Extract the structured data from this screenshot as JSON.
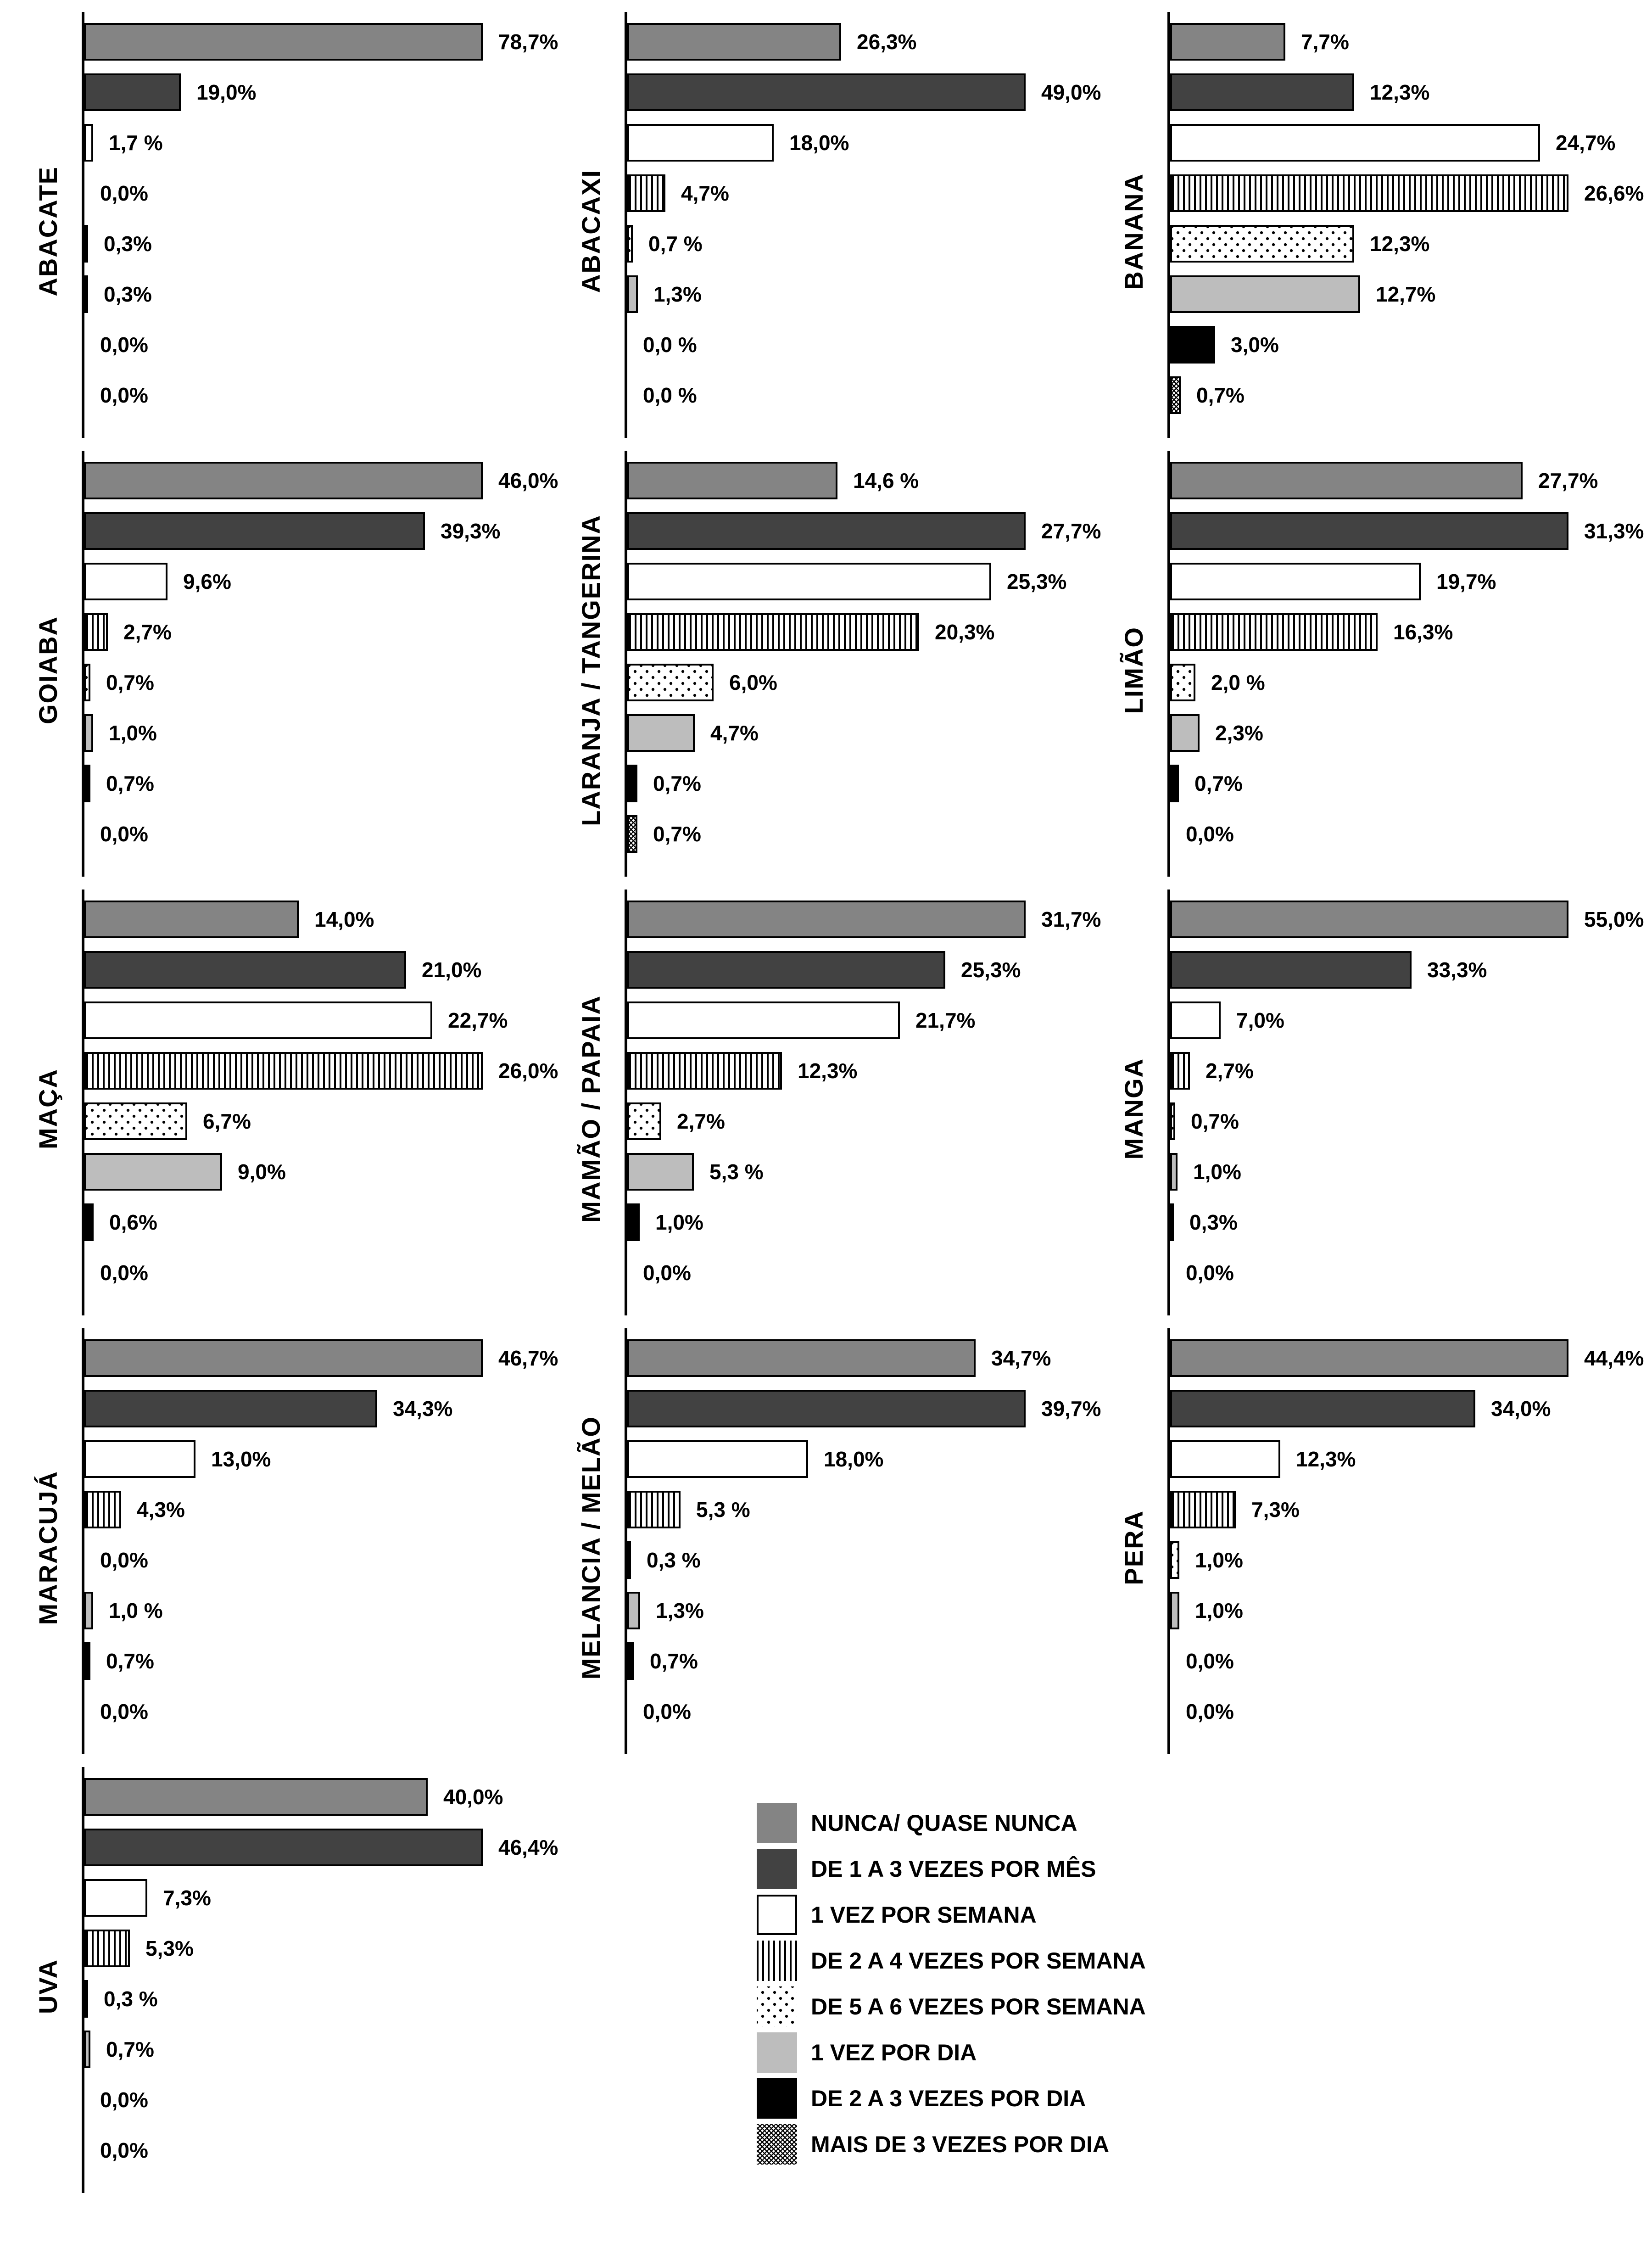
{
  "figure": {
    "description": "Frequency of fruit consumption, horizontal bar charts per fruit",
    "background": "#ffffff",
    "text_color": "#000000"
  },
  "palette": {
    "medium_gray": "#848484",
    "dark_gray": "#424242",
    "white": "#ffffff",
    "light_gray": "#bdbdbd",
    "black": "#000000"
  },
  "categories": [
    "NUNCA/ QUASE NUNCA",
    "DE 1 A 3 VEZES POR MÊS",
    "1 VEZ POR SEMANA",
    "DE 2 A 4 VEZES POR SEMANA",
    "DE 5 A 6 VEZES POR SEMANA",
    "1 VEZ POR DIA",
    "DE 2 A 3 VEZES POR DIA",
    "MAIS DE 3 VEZES POR DIA"
  ],
  "patterns": [
    "pat-gray",
    "pat-darkgray",
    "pat-white",
    "pat-vstripes",
    "pat-dots",
    "pat-lightgray",
    "pat-black",
    "pat-crosshatch"
  ],
  "legend": {
    "position": "bottom-right",
    "items": [
      {
        "label": "NUNCA/ QUASE NUNCA",
        "pattern": "pat-gray"
      },
      {
        "label": "DE 1 A 3 VEZES POR MÊS",
        "pattern": "pat-darkgray"
      },
      {
        "label": "1 VEZ POR SEMANA",
        "pattern": "pat-white"
      },
      {
        "label": "DE 2 A 4 VEZES POR SEMANA",
        "pattern": "pat-vstripes"
      },
      {
        "label": "DE 5 A 6 VEZES POR SEMANA",
        "pattern": "pat-dots"
      },
      {
        "label": "1 VEZ POR DIA",
        "pattern": "pat-lightgray"
      },
      {
        "label": "DE 2 A 3 VEZES POR DIA",
        "pattern": "pat-black"
      },
      {
        "label": "MAIS DE 3 VEZES POR DIA",
        "pattern": "pat-crosshatch"
      }
    ]
  },
  "chart_data": [
    {
      "type": "bar",
      "orientation": "horizontal",
      "fruit": "ABACATE",
      "categories_ref": "categories",
      "values": [
        78.7,
        19.0,
        1.7,
        0.0,
        0.3,
        0.3,
        0.0,
        0.0
      ],
      "value_labels": [
        "78,7%",
        "19,0%",
        "1,7 %",
        "0,0%",
        "0,3%",
        "0,3%",
        "0,0%",
        "0,0%"
      ]
    },
    {
      "type": "bar",
      "orientation": "horizontal",
      "fruit": "ABACAXI",
      "categories_ref": "categories",
      "values": [
        26.3,
        49.0,
        18.0,
        4.7,
        0.7,
        1.3,
        0.0,
        0.0
      ],
      "value_labels": [
        "26,3%",
        "49,0%",
        "18,0%",
        "4,7%",
        "0,7 %",
        "1,3%",
        "0,0 %",
        "0,0 %"
      ]
    },
    {
      "type": "bar",
      "orientation": "horizontal",
      "fruit": "BANANA",
      "categories_ref": "categories",
      "values": [
        7.7,
        12.3,
        24.7,
        26.6,
        12.3,
        12.7,
        3.0,
        0.7
      ],
      "value_labels": [
        "7,7%",
        "12,3%",
        "24,7%",
        "26,6%",
        "12,3%",
        "12,7%",
        "3,0%",
        "0,7%"
      ]
    },
    {
      "type": "bar",
      "orientation": "horizontal",
      "fruit": "GOIABA",
      "categories_ref": "categories",
      "values": [
        46.0,
        39.3,
        9.6,
        2.7,
        0.7,
        1.0,
        0.7,
        0.0
      ],
      "value_labels": [
        "46,0%",
        "39,3%",
        "9,6%",
        "2,7%",
        "0,7%",
        "1,0%",
        "0,7%",
        "0,0%"
      ]
    },
    {
      "type": "bar",
      "orientation": "horizontal",
      "fruit": "LARANJA / TANGERINA",
      "categories_ref": "categories",
      "values": [
        14.6,
        27.7,
        25.3,
        20.3,
        6.0,
        4.7,
        0.7,
        0.7
      ],
      "value_labels": [
        "14,6 %",
        "27,7%",
        "25,3%",
        "20,3%",
        "6,0%",
        "4,7%",
        "0,7%",
        "0,7%"
      ]
    },
    {
      "type": "bar",
      "orientation": "horizontal",
      "fruit": "LIMÃO",
      "categories_ref": "categories",
      "values": [
        27.7,
        31.3,
        19.7,
        16.3,
        2.0,
        2.3,
        0.7,
        0.0
      ],
      "value_labels": [
        "27,7%",
        "31,3%",
        "19,7%",
        "16,3%",
        "2,0 %",
        "2,3%",
        "0,7%",
        "0,0%"
      ]
    },
    {
      "type": "bar",
      "orientation": "horizontal",
      "fruit": "MAÇA",
      "categories_ref": "categories",
      "values": [
        14.0,
        21.0,
        22.7,
        26.0,
        6.7,
        9.0,
        0.6,
        0.0
      ],
      "value_labels": [
        "14,0%",
        "21,0%",
        "22,7%",
        "26,0%",
        "6,7%",
        "9,0%",
        "0,6%",
        "0,0%"
      ]
    },
    {
      "type": "bar",
      "orientation": "horizontal",
      "fruit": "MAMÃO / PAPAIA",
      "categories_ref": "categories",
      "values": [
        31.7,
        25.3,
        21.7,
        12.3,
        2.7,
        5.3,
        1.0,
        0.0
      ],
      "value_labels": [
        "31,7%",
        "25,3%",
        "21,7%",
        "12,3%",
        "2,7%",
        "5,3 %",
        "1,0%",
        "0,0%"
      ]
    },
    {
      "type": "bar",
      "orientation": "horizontal",
      "fruit": "MANGA",
      "categories_ref": "categories",
      "values": [
        55.0,
        33.3,
        7.0,
        2.7,
        0.7,
        1.0,
        0.3,
        0.0
      ],
      "value_labels": [
        "55,0%",
        "33,3%",
        "7,0%",
        "2,7%",
        "0,7%",
        "1,0%",
        "0,3%",
        "0,0%"
      ]
    },
    {
      "type": "bar",
      "orientation": "horizontal",
      "fruit": "MARACUJÁ",
      "categories_ref": "categories",
      "values": [
        46.7,
        34.3,
        13.0,
        4.3,
        0.0,
        1.0,
        0.7,
        0.0
      ],
      "value_labels": [
        "46,7%",
        "34,3%",
        "13,0%",
        "4,3%",
        "0,0%",
        "1,0 %",
        "0,7%",
        "0,0%"
      ]
    },
    {
      "type": "bar",
      "orientation": "horizontal",
      "fruit": "MELANCIA / MELÃO",
      "categories_ref": "categories",
      "values": [
        34.7,
        39.7,
        18.0,
        5.3,
        0.3,
        1.3,
        0.7,
        0.0
      ],
      "value_labels": [
        "34,7%",
        "39,7%",
        "18,0%",
        "5,3 %",
        "0,3 %",
        "1,3%",
        "0,7%",
        "0,0%"
      ]
    },
    {
      "type": "bar",
      "orientation": "horizontal",
      "fruit": "PERA",
      "categories_ref": "categories",
      "values": [
        44.4,
        34.0,
        12.3,
        7.3,
        1.0,
        1.0,
        0.0,
        0.0
      ],
      "value_labels": [
        "44,4%",
        "34,0%",
        "12,3%",
        "7,3%",
        "1,0%",
        "1,0%",
        "0,0%",
        "0,0%"
      ]
    },
    {
      "type": "bar",
      "orientation": "horizontal",
      "fruit": "UVA",
      "categories_ref": "categories",
      "values": [
        40.0,
        46.4,
        7.3,
        5.3,
        0.3,
        0.7,
        0.0,
        0.0
      ],
      "value_labels": [
        "40,0%",
        "46,4%",
        "7,3%",
        "5,3%",
        "0,3 %",
        "0,7%",
        "0,0%",
        "0,0%"
      ]
    }
  ]
}
